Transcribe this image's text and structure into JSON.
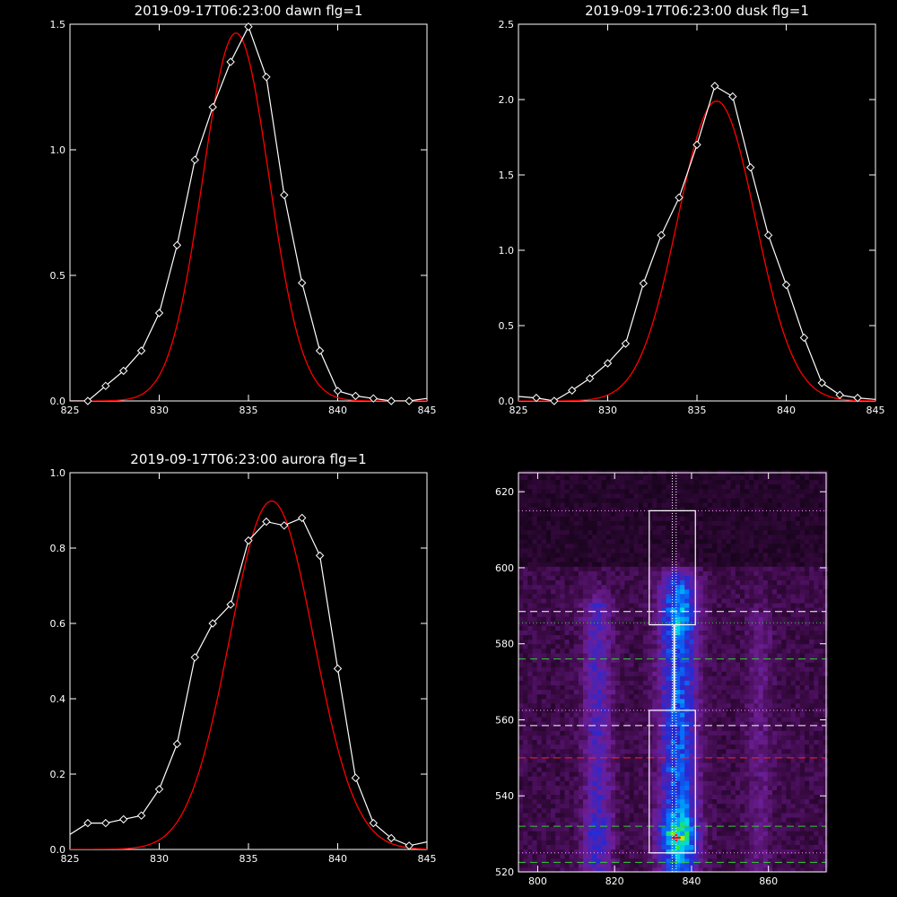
{
  "chart_data": [
    {
      "type": "line",
      "title": "2019-09-17T06:23:00 dawn flg=1",
      "xlim": [
        825,
        845
      ],
      "ylim": [
        0,
        1.5
      ],
      "xticks": [
        825,
        830,
        835,
        840,
        845
      ],
      "yticks": [
        0,
        0.5,
        1.0,
        1.5
      ],
      "xtick_labels": [
        "825",
        "830",
        "835",
        "840",
        "845"
      ],
      "ytick_labels": [
        "0.0",
        "0.5",
        "1.0",
        "1.5"
      ],
      "colors": {
        "data": "#ffffff",
        "fit": "#ff0000"
      },
      "series": [
        {
          "x": [
            825,
            826,
            827,
            828,
            829,
            830,
            831,
            832,
            833,
            834,
            835,
            836,
            837,
            838,
            839,
            840,
            841,
            842,
            843,
            844,
            845
          ],
          "y": [
            0.0,
            0.0,
            0.06,
            0.12,
            0.2,
            0.35,
            0.62,
            0.96,
            1.17,
            1.35,
            1.49,
            1.29,
            0.82,
            0.47,
            0.2,
            0.04,
            0.02,
            0.01,
            0.0,
            0.0,
            0.01
          ],
          "marker": "diamond"
        }
      ],
      "fit": {
        "amp": 1.465,
        "center": 834.3,
        "sigma": 1.86
      }
    },
    {
      "type": "line",
      "title": "2019-09-17T06:23:00 dusk flg=1",
      "xlim": [
        825,
        845
      ],
      "ylim": [
        0,
        2.5
      ],
      "xticks": [
        825,
        830,
        835,
        840,
        845
      ],
      "yticks": [
        0,
        0.5,
        1.0,
        1.5,
        2.0,
        2.5
      ],
      "xtick_labels": [
        "825",
        "830",
        "835",
        "840",
        "845"
      ],
      "ytick_labels": [
        "0.0",
        "0.5",
        "1.0",
        "1.5",
        "2.0",
        "2.5"
      ],
      "colors": {
        "data": "#ffffff",
        "fit": "#ff0000"
      },
      "series": [
        {
          "x": [
            825,
            826,
            827,
            828,
            829,
            830,
            831,
            832,
            833,
            834,
            835,
            836,
            837,
            838,
            839,
            840,
            841,
            842,
            843,
            844,
            845
          ],
          "y": [
            0.03,
            0.02,
            0.0,
            0.07,
            0.15,
            0.25,
            0.38,
            0.78,
            1.1,
            1.35,
            1.7,
            2.09,
            2.02,
            1.55,
            1.1,
            0.77,
            0.42,
            0.12,
            0.04,
            0.02,
            0.01
          ],
          "marker": "diamond"
        }
      ],
      "fit": {
        "amp": 1.99,
        "center": 836.1,
        "sigma": 2.18
      }
    },
    {
      "type": "line",
      "title": "2019-09-17T06:23:00 aurora flg=1",
      "xlim": [
        825,
        845
      ],
      "ylim": [
        0,
        1.0
      ],
      "xticks": [
        825,
        830,
        835,
        840,
        845
      ],
      "yticks": [
        0,
        0.2,
        0.4,
        0.6,
        0.8,
        1.0
      ],
      "xtick_labels": [
        "825",
        "830",
        "835",
        "840",
        "845"
      ],
      "ytick_labels": [
        "0.0",
        "0.2",
        "0.4",
        "0.6",
        "0.8",
        "1.0"
      ],
      "colors": {
        "data": "#ffffff",
        "fit": "#ff0000"
      },
      "series": [
        {
          "x": [
            825,
            826,
            827,
            828,
            829,
            830,
            831,
            832,
            833,
            834,
            835,
            836,
            837,
            838,
            839,
            840,
            841,
            842,
            843,
            844,
            845
          ],
          "y": [
            0.04,
            0.07,
            0.07,
            0.08,
            0.09,
            0.16,
            0.28,
            0.51,
            0.6,
            0.65,
            0.82,
            0.87,
            0.86,
            0.88,
            0.78,
            0.48,
            0.19,
            0.07,
            0.03,
            0.01,
            0.02
          ],
          "marker": "diamond"
        }
      ],
      "fit": {
        "amp": 0.925,
        "center": 836.3,
        "sigma": 2.35
      }
    },
    {
      "type": "heatmap",
      "title": "",
      "xlim": [
        795,
        875
      ],
      "ylim": [
        520,
        625
      ],
      "xticks": [
        800,
        820,
        840,
        860
      ],
      "yticks": [
        520,
        540,
        560,
        580,
        600,
        620
      ],
      "xtick_labels": [
        "800",
        "820",
        "840",
        "860"
      ],
      "ytick_labels": [
        "520",
        "540",
        "560",
        "580",
        "600",
        "620"
      ],
      "emission_columns": [
        {
          "center_x": 815,
          "strength": 0.45
        },
        {
          "center_x": 836,
          "strength": 1.0
        },
        {
          "center_x": 857,
          "strength": 0.15
        }
      ],
      "peak": {
        "x": 836,
        "y": 529
      },
      "boxes": [
        {
          "x": [
            829,
            841
          ],
          "y": [
            525,
            562.5
          ]
        },
        {
          "x": [
            829,
            841
          ],
          "y": [
            585,
            615
          ]
        }
      ],
      "vertical_lines": [
        835,
        836
      ],
      "horizontal_lines": [
        {
          "y": 615,
          "style": "dotted",
          "color": "#ff99ff"
        },
        {
          "y": 588.5,
          "style": "dashed",
          "color": "#ffffff"
        },
        {
          "y": 585.5,
          "style": "dotted",
          "color": "#33cc33"
        },
        {
          "y": 576,
          "style": "dashed",
          "color": "#33cc33"
        },
        {
          "y": 562.5,
          "style": "dotted",
          "color": "#ff99ff"
        },
        {
          "y": 558.5,
          "style": "dashed",
          "color": "#ffffff"
        },
        {
          "y": 550,
          "style": "dashed",
          "color": "#ff2222"
        },
        {
          "y": 532,
          "style": "dashed",
          "color": "#33cc33"
        },
        {
          "y": 525,
          "style": "dotted",
          "color": "#ff99ff"
        },
        {
          "y": 522.5,
          "style": "dashed",
          "color": "#33cc33"
        }
      ]
    }
  ]
}
